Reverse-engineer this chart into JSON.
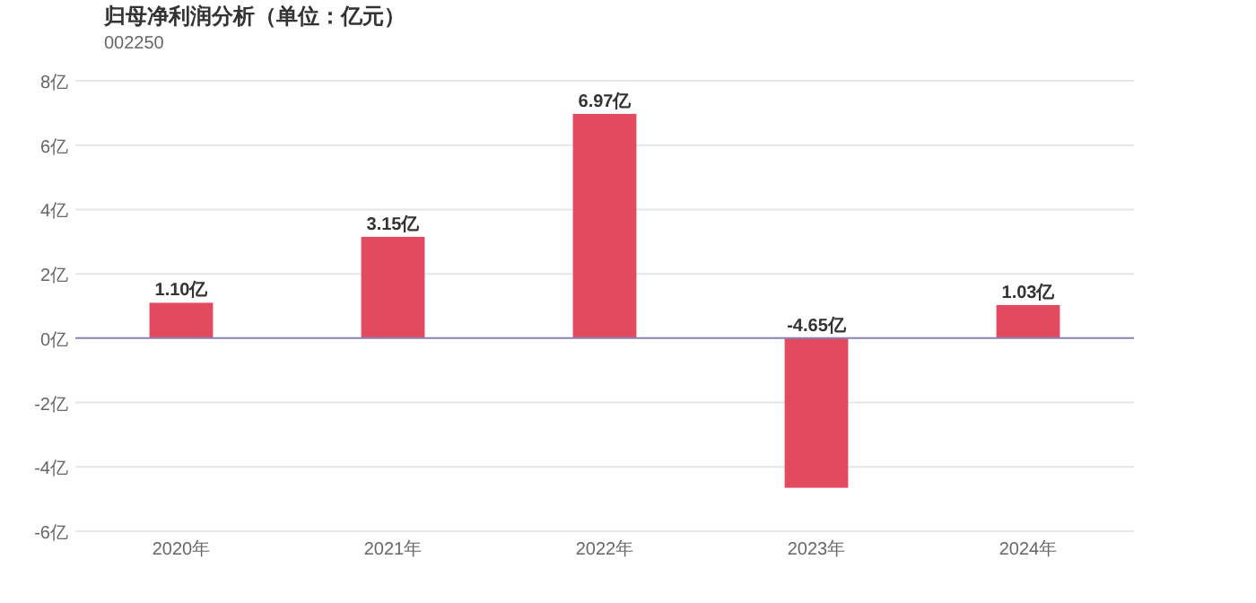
{
  "chart_data": {
    "type": "bar",
    "title": "归母净利润分析（单位：亿元）",
    "subtitle": "002250",
    "categories": [
      "2020年",
      "2021年",
      "2022年",
      "2023年",
      "2024年"
    ],
    "values": [
      1.1,
      3.15,
      6.97,
      -4.65,
      1.03
    ],
    "value_labels": [
      "1.10亿",
      "3.15亿",
      "6.97亿",
      "-4.65亿",
      "1.03亿"
    ],
    "color": "#e24b5f",
    "ylim": [
      -6,
      8
    ],
    "yticks": [
      {
        "value": -6,
        "label": "-6亿"
      },
      {
        "value": -4,
        "label": "-4亿"
      },
      {
        "value": -2,
        "label": "-2亿"
      },
      {
        "value": 0,
        "label": "0亿"
      },
      {
        "value": 2,
        "label": "2亿"
      },
      {
        "value": 4,
        "label": "4亿"
      },
      {
        "value": 6,
        "label": "6亿"
      },
      {
        "value": 8,
        "label": "8亿"
      }
    ],
    "grid": "y",
    "ref_lines": [
      {
        "axis": "y",
        "value": 0,
        "color": "#8a7fb0"
      }
    ]
  }
}
